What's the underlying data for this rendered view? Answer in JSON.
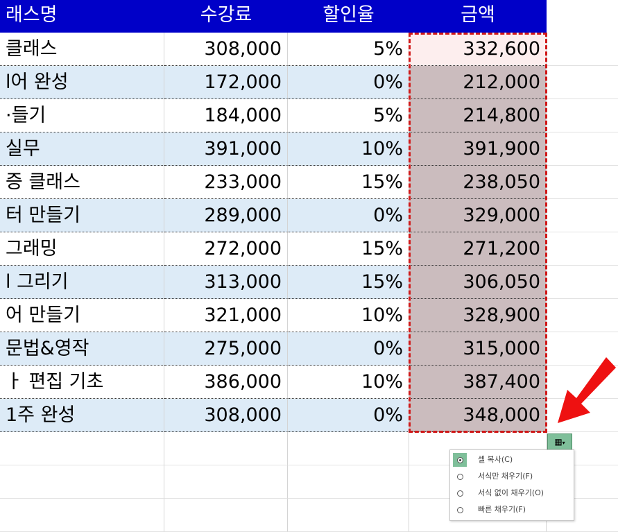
{
  "headers": [
    "래스명",
    "수강료",
    "할인율",
    "금액"
  ],
  "rows": [
    [
      "클래스",
      "308,000",
      "5%",
      "332,600"
    ],
    [
      "l어 완성",
      "172,000",
      "0%",
      "212,000"
    ],
    [
      "·들기",
      "184,000",
      "5%",
      "214,800"
    ],
    [
      "실무",
      "391,000",
      "10%",
      "391,900"
    ],
    [
      "증 클래스",
      "233,000",
      "15%",
      "238,050"
    ],
    [
      "터 만들기",
      "289,000",
      "0%",
      "329,000"
    ],
    [
      "그래밍",
      "272,000",
      "15%",
      "271,200"
    ],
    [
      "l 그리기",
      "313,000",
      "15%",
      "306,050"
    ],
    [
      "어 만들기",
      "321,000",
      "10%",
      "328,900"
    ],
    [
      "문법&영작",
      "275,000",
      "0%",
      "315,000"
    ],
    [
      "ㅏ 편집 기초",
      "386,000",
      "10%",
      "387,400"
    ],
    [
      "1주 완성",
      "308,000",
      "0%",
      "348,000"
    ]
  ],
  "autofill": {
    "button_icon": "auto-fill-options-icon",
    "options": [
      "셀 복사(C)",
      "서식만 채우기(F)",
      "서식 없이 채우기(O)",
      "빠른 채우기(F)"
    ],
    "selected": 0
  },
  "colors": {
    "header": "#0000c8",
    "alt_row": "#ddebf7",
    "selection_border": "#d01818",
    "arrow": "#ee1111"
  }
}
